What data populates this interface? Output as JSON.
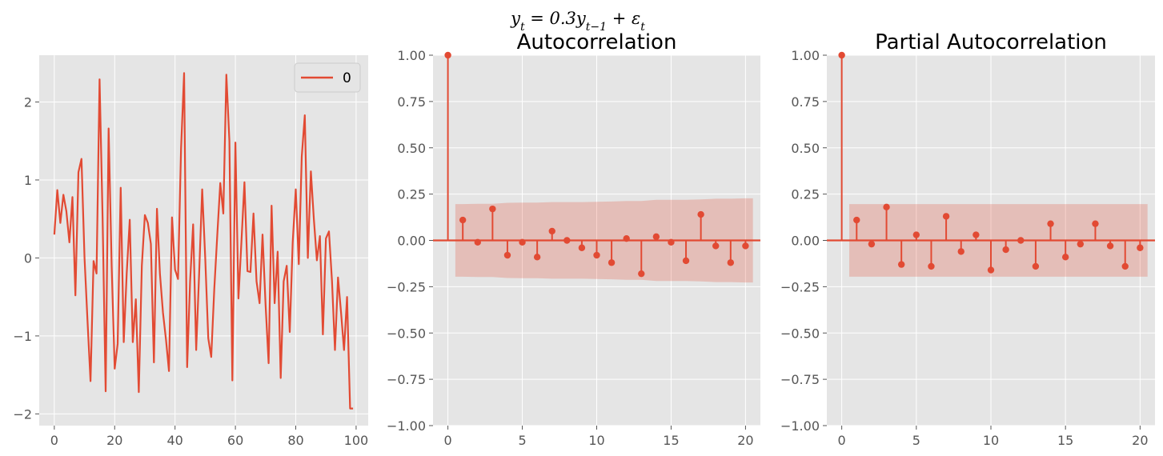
{
  "figure": {
    "suptitle": "y_t = 0.3y_{t-1} + ε_t",
    "colors": {
      "line": "#E24A33",
      "panel_bg": "#E5E5E5",
      "grid": "#FFFFFF",
      "band": "#E24A33"
    }
  },
  "chart_data": [
    {
      "type": "line",
      "title": "",
      "xlabel": "",
      "ylabel": "",
      "xlim": [
        -5,
        104
      ],
      "ylim": [
        -2.15,
        2.6
      ],
      "xticks": [
        0,
        20,
        40,
        60,
        80,
        100
      ],
      "yticks": [
        -2,
        -1,
        0,
        1,
        2
      ],
      "xtick_labels": [
        "0",
        "20",
        "40",
        "60",
        "80",
        "100"
      ],
      "ytick_labels": [
        "−2",
        "−1",
        "0",
        "1",
        "2"
      ],
      "grid": true,
      "legend": {
        "position": "top-right",
        "entries": [
          "0"
        ]
      },
      "series": [
        {
          "name": "0",
          "x": [
            0,
            1,
            2,
            3,
            4,
            5,
            6,
            7,
            8,
            9,
            10,
            11,
            12,
            13,
            14,
            15,
            16,
            17,
            18,
            19,
            20,
            21,
            22,
            23,
            24,
            25,
            26,
            27,
            28,
            29,
            30,
            31,
            32,
            33,
            34,
            35,
            36,
            37,
            38,
            39,
            40,
            41,
            42,
            43,
            44,
            45,
            46,
            47,
            48,
            49,
            50,
            51,
            52,
            53,
            54,
            55,
            56,
            57,
            58,
            59,
            60,
            61,
            62,
            63,
            64,
            65,
            66,
            67,
            68,
            69,
            70,
            71,
            72,
            73,
            74,
            75,
            76,
            77,
            78,
            79,
            80,
            81,
            82,
            83,
            84,
            85,
            86,
            87,
            88,
            89,
            90,
            91,
            92,
            93,
            94,
            95,
            96,
            97,
            98,
            99
          ],
          "values": [
            0.3,
            0.87,
            0.45,
            0.81,
            0.6,
            0.2,
            0.78,
            -0.48,
            1.1,
            1.27,
            0.0,
            -0.8,
            -1.58,
            -0.04,
            -0.2,
            2.29,
            0.5,
            -1.71,
            1.66,
            -0.1,
            -1.42,
            -1.1,
            0.9,
            -1.08,
            -0.2,
            0.49,
            -1.08,
            -0.53,
            -1.72,
            -0.1,
            0.55,
            0.45,
            0.18,
            -1.34,
            0.63,
            -0.2,
            -0.7,
            -1.05,
            -1.45,
            0.52,
            -0.15,
            -0.27,
            1.4,
            2.37,
            -1.4,
            -0.3,
            0.43,
            -1.18,
            -0.2,
            0.88,
            0.0,
            -1.03,
            -1.27,
            -0.4,
            0.3,
            0.96,
            0.57,
            2.35,
            1.5,
            -1.57,
            1.48,
            -0.52,
            0.2,
            0.97,
            -0.17,
            -0.18,
            0.57,
            -0.3,
            -0.58,
            0.3,
            -0.6,
            -1.35,
            0.67,
            -0.58,
            0.08,
            -1.54,
            -0.3,
            -0.1,
            -0.95,
            0.2,
            0.88,
            -0.08,
            1.3,
            1.83,
            0.0,
            1.11,
            0.5,
            -0.03,
            0.28,
            -0.98,
            0.25,
            0.34,
            -0.3,
            -1.18,
            -0.25,
            -0.7,
            -1.18,
            -0.5,
            -1.93,
            -1.93
          ]
        }
      ]
    },
    {
      "type": "stem",
      "title": "Autocorrelation",
      "xlabel": "",
      "ylabel": "",
      "xlim": [
        -1,
        21
      ],
      "ylim": [
        -1.0,
        1.0
      ],
      "xticks": [
        0,
        5,
        10,
        15,
        20
      ],
      "yticks": [
        -1.0,
        -0.75,
        -0.5,
        -0.25,
        0.0,
        0.25,
        0.5,
        0.75,
        1.0
      ],
      "xtick_labels": [
        "0",
        "5",
        "10",
        "15",
        "20"
      ],
      "ytick_labels": [
        "−1.00",
        "−0.75",
        "−0.50",
        "−0.25",
        "0.00",
        "0.25",
        "0.50",
        "0.75",
        "1.00"
      ],
      "grid": true,
      "lags": [
        0,
        1,
        2,
        3,
        4,
        5,
        6,
        7,
        8,
        9,
        10,
        11,
        12,
        13,
        14,
        15,
        16,
        17,
        18,
        19,
        20
      ],
      "values": [
        1.0,
        0.11,
        -0.01,
        0.17,
        -0.08,
        -0.01,
        -0.09,
        0.05,
        0.0,
        -0.04,
        -0.08,
        -0.12,
        0.01,
        -0.18,
        0.02,
        -0.01,
        -0.11,
        0.14,
        -0.03,
        -0.12,
        -0.03
      ],
      "confidence_band": {
        "lags": [
          0.5,
          1,
          2,
          3,
          4,
          5,
          6,
          7,
          8,
          9,
          10,
          11,
          12,
          13,
          14,
          15,
          16,
          17,
          18,
          19,
          20,
          20.5
        ],
        "upper": [
          0.196,
          0.196,
          0.198,
          0.198,
          0.203,
          0.204,
          0.204,
          0.207,
          0.207,
          0.207,
          0.208,
          0.21,
          0.213,
          0.213,
          0.219,
          0.219,
          0.219,
          0.221,
          0.225,
          0.225,
          0.227,
          0.227
        ]
      }
    },
    {
      "type": "stem",
      "title": "Partial Autocorrelation",
      "xlabel": "",
      "ylabel": "",
      "xlim": [
        -1,
        21
      ],
      "ylim": [
        -1.0,
        1.0
      ],
      "xticks": [
        0,
        5,
        10,
        15,
        20
      ],
      "yticks": [
        -1.0,
        -0.75,
        -0.5,
        -0.25,
        0.0,
        0.25,
        0.5,
        0.75,
        1.0
      ],
      "xtick_labels": [
        "0",
        "5",
        "10",
        "15",
        "20"
      ],
      "ytick_labels": [
        "−1.00",
        "−0.75",
        "−0.50",
        "−0.25",
        "0.00",
        "0.25",
        "0.50",
        "0.75",
        "1.00"
      ],
      "grid": true,
      "lags": [
        0,
        1,
        2,
        3,
        4,
        5,
        6,
        7,
        8,
        9,
        10,
        11,
        12,
        13,
        14,
        15,
        16,
        17,
        18,
        19,
        20
      ],
      "values": [
        1.0,
        0.11,
        -0.02,
        0.18,
        -0.13,
        0.03,
        -0.14,
        0.13,
        -0.06,
        0.03,
        -0.16,
        -0.05,
        0.0,
        -0.14,
        0.09,
        -0.09,
        -0.02,
        0.09,
        -0.03,
        -0.14,
        -0.04
      ],
      "confidence_band": {
        "lags": [
          0.5,
          20.5
        ],
        "upper": [
          0.196,
          0.196
        ]
      }
    }
  ]
}
